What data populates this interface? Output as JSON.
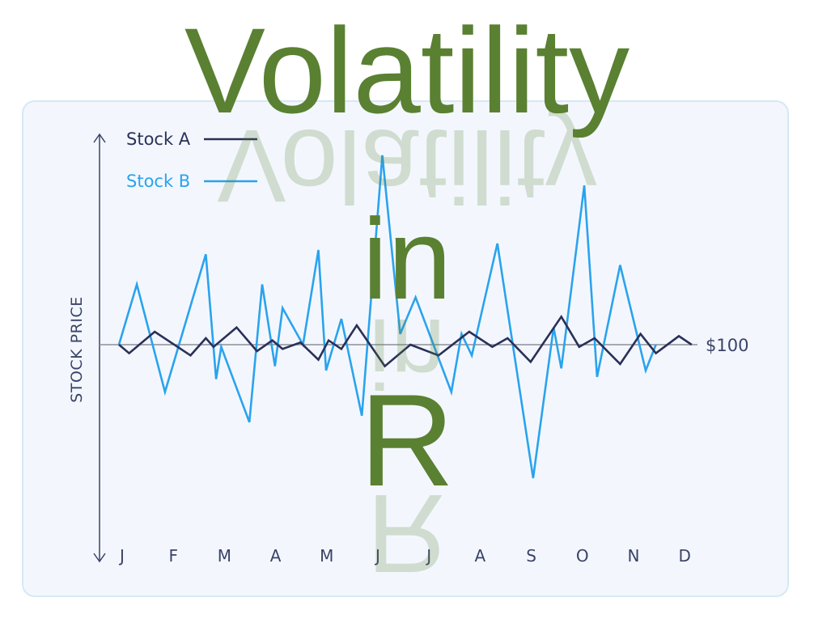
{
  "title_lines": [
    "Volatility",
    "in",
    "R"
  ],
  "colors": {
    "title": "#5a8032",
    "stock_a": "#2b3059",
    "stock_b": "#2aa3ee",
    "reference": "#8a8f99",
    "axis": "#3a4368",
    "card_bg": "#f3f7fd"
  },
  "chart_data": {
    "type": "line",
    "ylabel": "STOCK PRICE",
    "xlabel": "",
    "categories": [
      "J",
      "F",
      "M",
      "A",
      "M",
      "J",
      "J",
      "A",
      "S",
      "O",
      "N",
      "D"
    ],
    "reference_line": {
      "value": 100,
      "label": "$100"
    },
    "legend_position": "top-left",
    "grid": false,
    "series": [
      {
        "name": "Stock A",
        "color": "#2b3059",
        "points": [
          [
            0,
            100
          ],
          [
            0.2,
            96
          ],
          [
            0.7,
            106
          ],
          [
            1.4,
            95
          ],
          [
            1.7,
            103
          ],
          [
            1.85,
            99
          ],
          [
            2.3,
            108
          ],
          [
            2.7,
            97
          ],
          [
            3.0,
            102
          ],
          [
            3.2,
            98
          ],
          [
            3.55,
            101
          ],
          [
            3.9,
            93
          ],
          [
            4.1,
            102
          ],
          [
            4.35,
            98
          ],
          [
            4.65,
            109
          ],
          [
            5.2,
            90
          ],
          [
            5.7,
            100
          ],
          [
            6.25,
            95
          ],
          [
            6.85,
            106
          ],
          [
            7.3,
            99
          ],
          [
            7.6,
            103
          ],
          [
            8.05,
            92
          ],
          [
            8.65,
            113
          ],
          [
            9.0,
            99
          ],
          [
            9.3,
            103
          ],
          [
            9.8,
            91
          ],
          [
            10.2,
            105
          ],
          [
            10.5,
            96
          ],
          [
            10.95,
            104
          ],
          [
            11.2,
            100
          ]
        ]
      },
      {
        "name": "Stock B",
        "color": "#2aa3ee",
        "points": [
          [
            0,
            100
          ],
          [
            0.35,
            128
          ],
          [
            0.9,
            78
          ],
          [
            1.7,
            142
          ],
          [
            1.9,
            84
          ],
          [
            2.0,
            99
          ],
          [
            2.55,
            64
          ],
          [
            2.8,
            128
          ],
          [
            3.05,
            90
          ],
          [
            3.2,
            117
          ],
          [
            3.6,
            100
          ],
          [
            3.9,
            144
          ],
          [
            4.05,
            88
          ],
          [
            4.35,
            112
          ],
          [
            4.75,
            67
          ],
          [
            5.15,
            188
          ],
          [
            5.5,
            105
          ],
          [
            5.8,
            122
          ],
          [
            6.5,
            78
          ],
          [
            6.7,
            105
          ],
          [
            6.9,
            95
          ],
          [
            7.4,
            147
          ],
          [
            8.1,
            38
          ],
          [
            8.5,
            108
          ],
          [
            8.65,
            89
          ],
          [
            9.1,
            174
          ],
          [
            9.35,
            85
          ],
          [
            9.8,
            137
          ],
          [
            10.3,
            88
          ],
          [
            10.5,
            100
          ]
        ]
      }
    ]
  }
}
